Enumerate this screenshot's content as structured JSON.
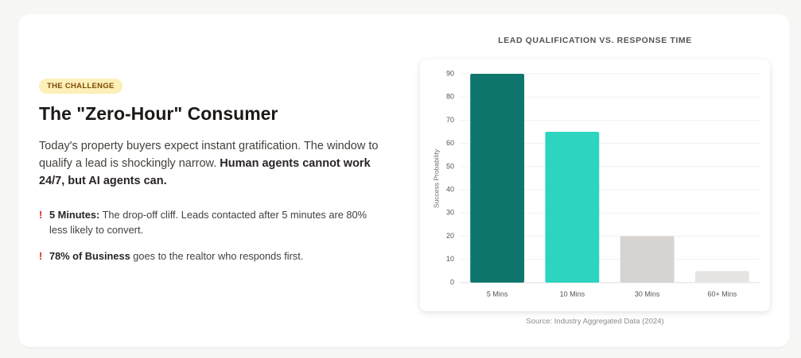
{
  "badge": "THE CHALLENGE",
  "heading": "The \"Zero-Hour\" Consumer",
  "intro": {
    "text": "Today's property buyers expect instant gratification. The window to qualify a lead is shockingly narrow.",
    "bold": "Human agents cannot work 24/7, but AI agents can."
  },
  "bullet_marker": "!",
  "bullets": [
    {
      "bold": "5 Minutes:",
      "text": "The drop-off cliff. Leads contacted after 5 minutes are 80% less likely to convert."
    },
    {
      "bold": "78% of Business",
      "text": "goes to the realtor who responds first."
    }
  ],
  "chart_data": {
    "type": "bar",
    "title": "LEAD QUALIFICATION VS. RESPONSE TIME",
    "y_label": "Success Probability",
    "categories": [
      "5 Mins",
      "10 Mins",
      "30 Mins",
      "60+ Mins"
    ],
    "values": [
      90,
      65,
      20,
      5
    ],
    "colors": [
      "#0f766e",
      "#2dd4bf",
      "#d6d3d1",
      "#e7e5e4"
    ],
    "ylim": [
      0,
      90
    ],
    "yticks": [
      0,
      10,
      20,
      30,
      40,
      50,
      60,
      70,
      80,
      90
    ],
    "grid": true,
    "source": "Source: Industry Aggregated Data (2024)"
  }
}
